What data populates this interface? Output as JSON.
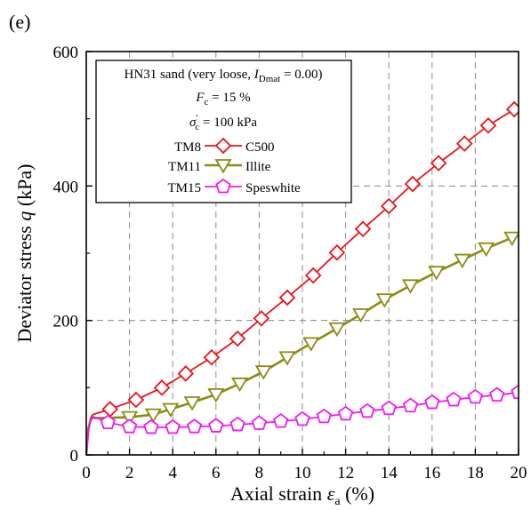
{
  "chart_data": {
    "type": "line",
    "panel_label": "(e)",
    "xlabel_main": "Axial strain ",
    "xlabel_sym": "ε",
    "xlabel_sub": "a",
    "xlabel_unit": " (%)",
    "ylabel_main": "Deviator stress ",
    "ylabel_sym": "q",
    "ylabel_unit": " (kPa)",
    "xlim": [
      0,
      20
    ],
    "ylim": [
      0,
      600
    ],
    "xticks": [
      0,
      2,
      4,
      6,
      8,
      10,
      12,
      14,
      16,
      18,
      20
    ],
    "yticks": [
      0,
      200,
      400,
      600
    ],
    "grid": "dashed",
    "legend_position": "top-left",
    "annotation": {
      "line1_pre": "HN31 sand (very loose, ",
      "line1_sym": "I",
      "line1_sub": "Dmat",
      "line1_post": " = 0.00)",
      "line2_sym": "F",
      "line2_sub": "c",
      "line2_post": " = 15 %",
      "line3_sym": "σ",
      "line3_sup": "'",
      "line3_sub": "c",
      "line3_post": " = 100 kPa"
    },
    "series": [
      {
        "test": "TM8",
        "name": "C500",
        "color": "#e8141b",
        "marker": "diamond",
        "x": [
          0,
          0.1,
          0.2,
          0.3,
          0.5,
          1.1,
          2.3,
          3.5,
          4.6,
          5.8,
          7.0,
          8.1,
          9.3,
          10.5,
          11.6,
          12.8,
          14.0,
          15.1,
          16.3,
          17.5,
          18.6,
          19.8
        ],
        "y": [
          0,
          40,
          55,
          60,
          62,
          68,
          82,
          100,
          121,
          145,
          173,
          203,
          234,
          267,
          301,
          336,
          370,
          403,
          434,
          463,
          490,
          514
        ]
      },
      {
        "test": "TM11",
        "name": "Illite",
        "color": "#8b8b14",
        "marker": "triangle-down",
        "x": [
          0,
          0.1,
          0.2,
          0.3,
          0.6,
          2.0,
          3.1,
          3.9,
          4.9,
          6.0,
          7.1,
          8.2,
          9.3,
          10.4,
          11.6,
          12.7,
          13.8,
          15.0,
          16.2,
          17.4,
          18.5,
          19.7
        ],
        "y": [
          0,
          40,
          52,
          55,
          55,
          56,
          60,
          68,
          78,
          90,
          106,
          124,
          145,
          166,
          188,
          209,
          231,
          252,
          272,
          290,
          307,
          323
        ]
      },
      {
        "test": "TM15",
        "name": "Speswhite",
        "color": "#f019f0",
        "marker": "pentagon",
        "x": [
          0,
          0.1,
          0.2,
          0.3,
          0.5,
          1.0,
          2.0,
          3.0,
          4.0,
          5.0,
          6.0,
          7.0,
          8.0,
          9.0,
          10.0,
          11.0,
          12.0,
          13.0,
          14.0,
          15.0,
          16.0,
          17.0,
          18.0,
          19.0,
          20.0
        ],
        "y": [
          0,
          35,
          52,
          57,
          55,
          48,
          42,
          41,
          41,
          42,
          43,
          45,
          47,
          50,
          53,
          57,
          61,
          65,
          69,
          73,
          78,
          82,
          86,
          89,
          93
        ]
      }
    ]
  }
}
